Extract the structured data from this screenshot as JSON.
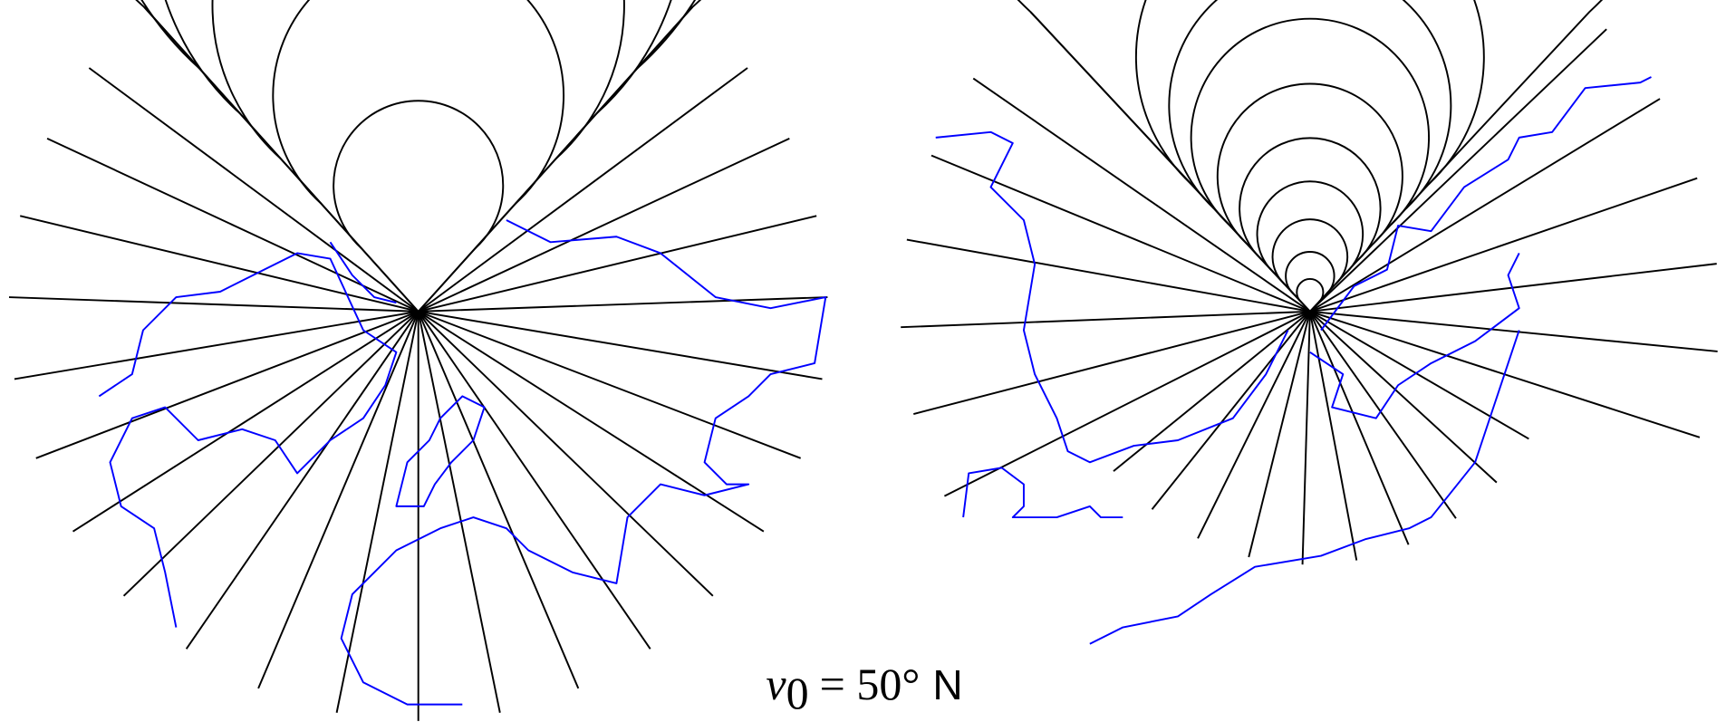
{
  "caption": {
    "symbol": "v",
    "subscript": "0",
    "equation": "= 50°",
    "hemisphere": "N"
  }
}
